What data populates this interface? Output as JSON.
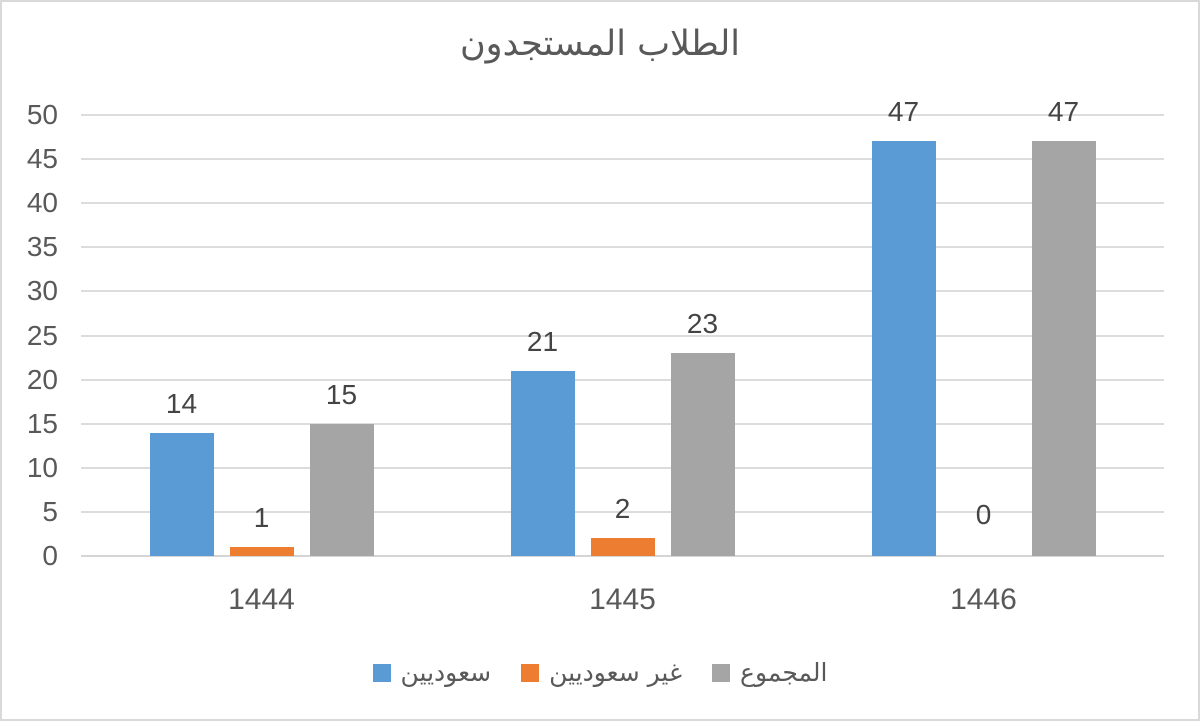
{
  "chart_data": {
    "type": "bar",
    "title": "الطلاب المستجدون",
    "categories": [
      "1444",
      "1445",
      "1446"
    ],
    "series": [
      {
        "name": "سعوديين",
        "color": "#5B9BD5",
        "values": [
          14,
          21,
          47
        ]
      },
      {
        "name": "غير سعوديين",
        "color": "#ED7D31",
        "values": [
          1,
          2,
          0
        ]
      },
      {
        "name": "المجموع",
        "color": "#A5A5A5",
        "values": [
          15,
          23,
          47
        ]
      }
    ],
    "ylim": [
      0,
      50
    ],
    "ytick_step": 5,
    "yticks": [
      "0",
      "5",
      "10",
      "15",
      "20",
      "25",
      "30",
      "35",
      "40",
      "45",
      "50"
    ],
    "xlabel": "",
    "ylabel": "",
    "grid": "horizontal-only",
    "legend_position": "bottom",
    "data_labels": "above-bars",
    "text_color": "#595959",
    "data_label_color": "#444444",
    "gridline_color": "#DCDCDC",
    "background_color": "#FFFFFF",
    "border_color": "#D9D9D9"
  }
}
